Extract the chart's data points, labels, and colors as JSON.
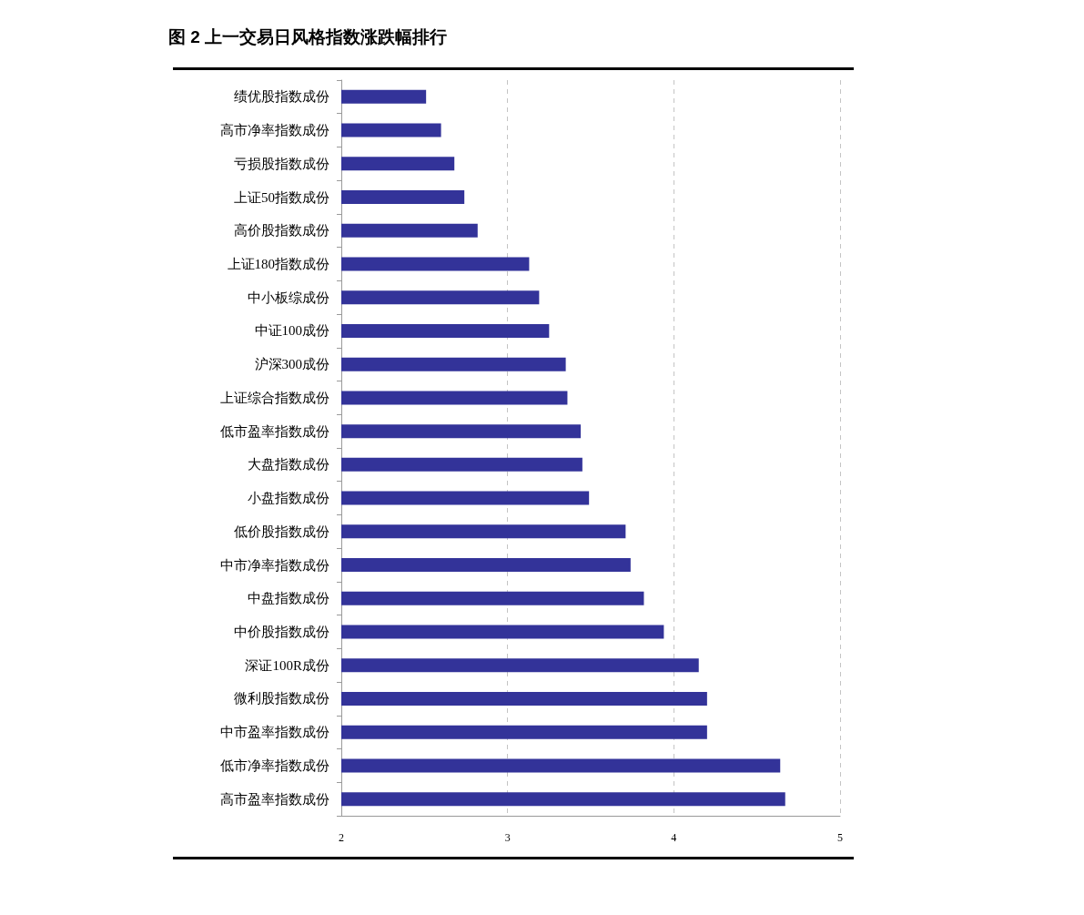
{
  "chart_data": {
    "type": "bar",
    "orientation": "horizontal",
    "title": "图 2 上一交易日风格指数涨跌幅排行",
    "categories": [
      "绩优股指数成份",
      "高市净率指数成份",
      "亏损股指数成份",
      "上证50指数成份",
      "高价股指数成份",
      "上证180指数成份",
      "中小板综成份",
      "中证100成份",
      "沪深300成份",
      "上证综合指数成份",
      "低市盈率指数成份",
      "大盘指数成份",
      "小盘指数成份",
      "低价股指数成份",
      "中市净率指数成份",
      "中盘指数成份",
      "中价股指数成份",
      "深证100R成份",
      "微利股指数成份",
      "中市盈率指数成份",
      "低市净率指数成份",
      "高市盈率指数成份"
    ],
    "values": [
      2.51,
      2.6,
      2.68,
      2.74,
      2.82,
      3.13,
      3.19,
      3.25,
      3.35,
      3.36,
      3.44,
      3.45,
      3.49,
      3.71,
      3.74,
      3.82,
      3.94,
      4.15,
      4.2,
      4.2,
      4.64,
      4.67
    ],
    "color": "#333399",
    "xlim": [
      2,
      5
    ],
    "xticks": [
      2,
      3,
      4,
      5
    ],
    "grid": "x"
  }
}
